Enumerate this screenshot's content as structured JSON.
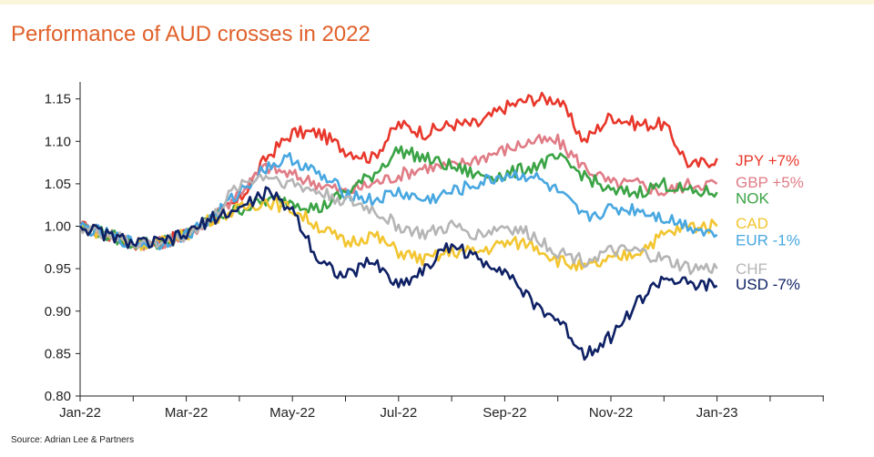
{
  "title": "Performance of AUD crosses in 2022",
  "source": "Source: Adrian Lee & Partners",
  "chart_data": {
    "type": "line",
    "title": "Performance of AUD crosses in 2022",
    "xlabel": "",
    "ylabel": "",
    "ylim": [
      0.8,
      1.17
    ],
    "yticks": [
      "0.80",
      "0.85",
      "0.90",
      "0.95",
      "1.00",
      "1.05",
      "1.10",
      "1.15"
    ],
    "xticks": [
      "Jan-22",
      "Mar-22",
      "May-22",
      "Jul-22",
      "Sep-22",
      "Nov-22",
      "Jan-23"
    ],
    "x_months": [
      0,
      0.5,
      1,
      1.5,
      2,
      2.5,
      3,
      3.5,
      4,
      4.5,
      5,
      5.5,
      6,
      6.5,
      7,
      7.5,
      8,
      8.5,
      9,
      9.5,
      10,
      10.5,
      11,
      11.5,
      12
    ],
    "series": [
      {
        "name": "JPY",
        "label": "JPY +7%",
        "color": "#e8372b",
        "values": [
          1.0,
          0.99,
          0.98,
          0.98,
          0.99,
          1.01,
          1.03,
          1.08,
          1.11,
          1.11,
          1.09,
          1.08,
          1.12,
          1.11,
          1.12,
          1.12,
          1.14,
          1.15,
          1.15,
          1.1,
          1.13,
          1.12,
          1.12,
          1.07,
          1.08
        ]
      },
      {
        "name": "GBP",
        "label": "GBP +5%",
        "color": "#e07c86",
        "values": [
          1.0,
          0.99,
          0.98,
          0.98,
          0.99,
          1.01,
          1.04,
          1.07,
          1.06,
          1.05,
          1.04,
          1.05,
          1.06,
          1.07,
          1.07,
          1.08,
          1.09,
          1.1,
          1.1,
          1.07,
          1.05,
          1.05,
          1.04,
          1.05,
          1.05
        ]
      },
      {
        "name": "NOK",
        "label": "NOK",
        "color": "#3aa345",
        "values": [
          1.0,
          0.99,
          0.98,
          0.98,
          0.99,
          1.01,
          1.02,
          1.03,
          1.03,
          1.02,
          1.04,
          1.06,
          1.09,
          1.08,
          1.07,
          1.06,
          1.06,
          1.07,
          1.08,
          1.06,
          1.04,
          1.04,
          1.05,
          1.04,
          1.04
        ]
      },
      {
        "name": "CAD",
        "label": "CAD",
        "color": "#f2c531",
        "values": [
          1.0,
          0.99,
          0.98,
          0.98,
          0.99,
          1.01,
          1.02,
          1.03,
          1.02,
          1.0,
          0.98,
          0.99,
          0.97,
          0.96,
          0.97,
          0.97,
          0.98,
          0.98,
          0.96,
          0.95,
          0.96,
          0.97,
          0.99,
          1.0,
          1.0
        ]
      },
      {
        "name": "EUR",
        "label": "EUR -1%",
        "color": "#48a7e0",
        "values": [
          1.0,
          0.99,
          0.98,
          0.98,
          0.99,
          1.01,
          1.04,
          1.07,
          1.08,
          1.06,
          1.04,
          1.03,
          1.04,
          1.03,
          1.04,
          1.05,
          1.06,
          1.06,
          1.04,
          1.01,
          1.02,
          1.02,
          1.01,
          1.0,
          0.99
        ]
      },
      {
        "name": "CHF",
        "label": "CHF",
        "color": "#b5b5b5",
        "values": [
          1.0,
          0.99,
          0.98,
          0.98,
          0.99,
          1.01,
          1.05,
          1.06,
          1.05,
          1.04,
          1.03,
          1.02,
          1.0,
          0.99,
          1.0,
          0.99,
          1.0,
          0.99,
          0.97,
          0.96,
          0.97,
          0.97,
          0.96,
          0.95,
          0.95
        ]
      },
      {
        "name": "USD",
        "label": "USD -7%",
        "color": "#0f2165",
        "values": [
          1.0,
          0.99,
          0.98,
          0.98,
          0.99,
          1.01,
          1.02,
          1.04,
          1.02,
          0.96,
          0.94,
          0.96,
          0.93,
          0.95,
          0.98,
          0.96,
          0.95,
          0.91,
          0.89,
          0.85,
          0.87,
          0.91,
          0.94,
          0.93,
          0.93
        ]
      }
    ]
  }
}
